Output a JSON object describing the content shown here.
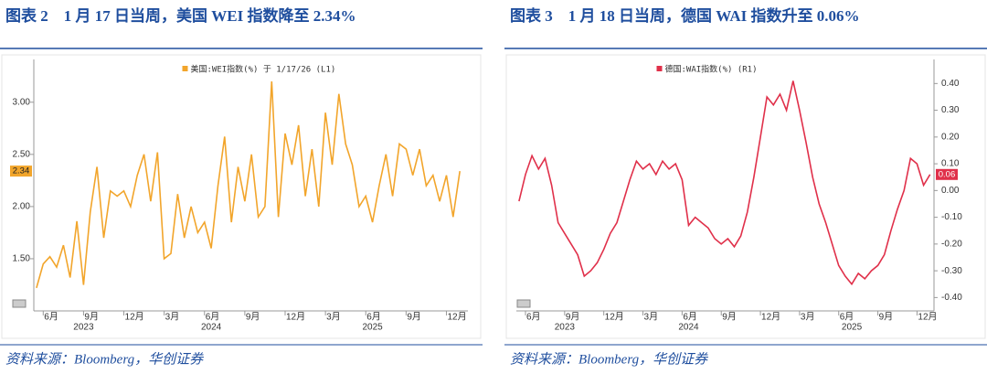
{
  "chart_data": [
    {
      "type": "line",
      "title": "图表 2　1 月 17 日当周，美国 WEI 指数降至 2.34%",
      "source": "资料来源：Bloomberg，华创证券",
      "y_axis_side": "left",
      "grid": false,
      "ylim": [
        1.0,
        3.41
      ],
      "yticks": [
        {
          "value": 1.5,
          "label": "1.50"
        },
        {
          "value": 2.0,
          "label": "2.00"
        },
        {
          "value": 2.5,
          "label": "2.50"
        },
        {
          "value": 3.0,
          "label": "3.00"
        }
      ],
      "xlim": [
        -0.7,
        31.6
      ],
      "xticks": [
        {
          "value": 0,
          "label": "6月"
        },
        {
          "value": 3,
          "label": "9月"
        },
        {
          "value": 6,
          "label": "12月"
        },
        {
          "value": 9,
          "label": "3月"
        },
        {
          "value": 12,
          "label": "6月"
        },
        {
          "value": 15,
          "label": "9月"
        },
        {
          "value": 18,
          "label": "12月"
        },
        {
          "value": 21,
          "label": "3月"
        },
        {
          "value": 24,
          "label": "6月"
        },
        {
          "value": 27,
          "label": "9月"
        },
        {
          "value": 30,
          "label": "12月"
        }
      ],
      "year_ticks": [
        {
          "value": 3,
          "label": "2023"
        },
        {
          "value": 12.5,
          "label": "2024"
        },
        {
          "value": 24.5,
          "label": "2025"
        }
      ],
      "x": [
        -0.5,
        0,
        0.5,
        1,
        1.5,
        2,
        2.5,
        3,
        3.5,
        4,
        4.5,
        5,
        5.5,
        6,
        6.5,
        7,
        7.5,
        8,
        8.5,
        9,
        9.5,
        10,
        10.5,
        11,
        11.5,
        12,
        12.5,
        13,
        13.5,
        14,
        14.5,
        15,
        15.5,
        16,
        16.5,
        17,
        17.5,
        18,
        18.5,
        19,
        19.5,
        20,
        20.5,
        21,
        21.5,
        22,
        22.5,
        23,
        23.5,
        24,
        24.5,
        25,
        25.5,
        26,
        26.5,
        27,
        27.5,
        28,
        28.5,
        29,
        29.5,
        30,
        30.5,
        31
      ],
      "series": [
        {
          "name": "美国:WEI指数(%) 于 1/17/26 (L1)",
          "color": "#f2a52b",
          "values": [
            1.22,
            1.45,
            1.52,
            1.42,
            1.63,
            1.32,
            1.86,
            1.25,
            1.95,
            2.38,
            1.7,
            2.15,
            2.1,
            2.15,
            2.0,
            2.3,
            2.5,
            2.05,
            2.52,
            1.5,
            1.55,
            2.12,
            1.7,
            2.0,
            1.75,
            1.85,
            1.6,
            2.2,
            2.67,
            1.85,
            2.38,
            2.05,
            2.5,
            1.9,
            2.0,
            3.2,
            1.9,
            2.7,
            2.4,
            2.78,
            2.1,
            2.55,
            2.0,
            2.9,
            2.4,
            3.08,
            2.6,
            2.4,
            2.0,
            2.1,
            1.85,
            2.2,
            2.5,
            2.1,
            2.6,
            2.55,
            2.3,
            2.55,
            2.2,
            2.3,
            2.05,
            2.3,
            1.9,
            2.34
          ]
        }
      ],
      "last_label": {
        "value": 2.34,
        "label": "2.34"
      }
    },
    {
      "type": "line",
      "title": "图表 3　1 月 18 日当周，德国 WAI 指数升至 0.06%",
      "source": "资料来源：Bloomberg，华创证券",
      "y_axis_side": "right",
      "grid": false,
      "ylim": [
        -0.45,
        0.49
      ],
      "yticks": [
        {
          "value": -0.4,
          "label": "-0.40"
        },
        {
          "value": -0.3,
          "label": "-0.30"
        },
        {
          "value": -0.2,
          "label": "-0.20"
        },
        {
          "value": -0.1,
          "label": "-0.10"
        },
        {
          "value": 0,
          "label": "0.00"
        },
        {
          "value": 0.1,
          "label": "0.10"
        },
        {
          "value": 0.2,
          "label": "0.20"
        },
        {
          "value": 0.3,
          "label": "0.30"
        },
        {
          "value": 0.4,
          "label": "0.40"
        }
      ],
      "xlim": [
        -0.7,
        31.3
      ],
      "xticks": [
        {
          "value": 0,
          "label": "6月"
        },
        {
          "value": 3,
          "label": "9月"
        },
        {
          "value": 6,
          "label": "12月"
        },
        {
          "value": 9,
          "label": "3月"
        },
        {
          "value": 12,
          "label": "6月"
        },
        {
          "value": 15,
          "label": "9月"
        },
        {
          "value": 18,
          "label": "12月"
        },
        {
          "value": 21,
          "label": "3月"
        },
        {
          "value": 24,
          "label": "6月"
        },
        {
          "value": 27,
          "label": "9月"
        },
        {
          "value": 30,
          "label": "12月"
        }
      ],
      "year_ticks": [
        {
          "value": 3,
          "label": "2023"
        },
        {
          "value": 12.5,
          "label": "2024"
        },
        {
          "value": 25,
          "label": "2025"
        }
      ],
      "x": [
        -0.5,
        0,
        0.5,
        1,
        1.5,
        2,
        2.5,
        3,
        3.5,
        4,
        4.5,
        5,
        5.5,
        6,
        6.5,
        7,
        7.5,
        8,
        8.5,
        9,
        9.5,
        10,
        10.5,
        11,
        11.5,
        12,
        12.5,
        13,
        13.5,
        14,
        14.5,
        15,
        15.5,
        16,
        16.5,
        17,
        17.5,
        18,
        18.5,
        19,
        19.5,
        20,
        20.5,
        21,
        21.5,
        22,
        22.5,
        23,
        23.5,
        24,
        24.5,
        25,
        25.5,
        26,
        26.5,
        27,
        27.5,
        28,
        28.5,
        29,
        29.5,
        30,
        30.5,
        31
      ],
      "series": [
        {
          "name": "德国:WAI指数(%) (R1)",
          "color": "#e0304a",
          "values": [
            -0.04,
            0.06,
            0.13,
            0.08,
            0.12,
            0.02,
            -0.12,
            -0.16,
            -0.2,
            -0.24,
            -0.32,
            -0.3,
            -0.27,
            -0.22,
            -0.16,
            -0.12,
            -0.04,
            0.04,
            0.11,
            0.08,
            0.1,
            0.06,
            0.11,
            0.08,
            0.1,
            0.04,
            -0.13,
            -0.1,
            -0.12,
            -0.14,
            -0.18,
            -0.2,
            -0.18,
            -0.21,
            -0.17,
            -0.08,
            0.05,
            0.2,
            0.35,
            0.32,
            0.36,
            0.3,
            0.41,
            0.3,
            0.18,
            0.05,
            -0.05,
            -0.12,
            -0.2,
            -0.28,
            -0.32,
            -0.35,
            -0.31,
            -0.33,
            -0.3,
            -0.28,
            -0.24,
            -0.15,
            -0.07,
            0.0,
            0.12,
            0.1,
            0.02,
            0.06
          ]
        }
      ],
      "last_label": {
        "value": 0.06,
        "label": "0.06"
      }
    }
  ]
}
